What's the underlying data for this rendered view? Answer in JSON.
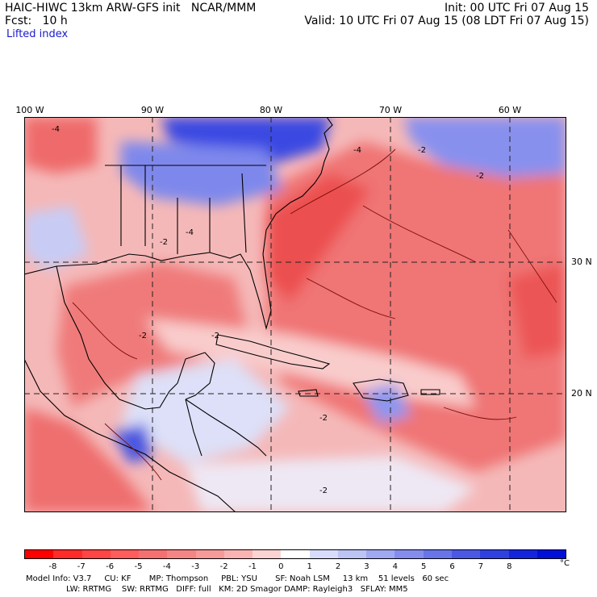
{
  "header": {
    "model": "HAIC-HIWC 13km ARW-GFS init   NCAR/MMM",
    "fcst": "Fcst:   10 h",
    "field": "Lifted index",
    "init": "Init: 00 UTC Fri 07 Aug 15",
    "valid": "Valid: 10 UTC Fri 07 Aug 15 (08 LDT Fri 07 Aug 15)"
  },
  "map": {
    "lon_labels": [
      "100 W",
      "90 W",
      "80 W",
      "70 W",
      "60 W"
    ],
    "lat_labels": [
      "30 N",
      "20 N"
    ],
    "contour_label": "-2",
    "contour_label_neg4": "-4",
    "colors": {
      "strong_neg": "#e83030",
      "mid_neg": "#f06565",
      "weak_neg": "#f7a7a7",
      "near_zero": "#ffe9e9",
      "weak_pos": "#c8cdf5",
      "mid_pos": "#8088e8",
      "strong_pos": "#2535e0"
    }
  },
  "colorbar": {
    "ticks": [
      "-8",
      "-7",
      "-6",
      "-5",
      "-4",
      "-3",
      "-2",
      "-1",
      "0",
      "1",
      "2",
      "3",
      "4",
      "5",
      "6",
      "7",
      "8"
    ],
    "unit": "°C",
    "colors": [
      "#ff0000",
      "#ff2b2b",
      "#ff4545",
      "#ff5d5d",
      "#f57070",
      "#f58585",
      "#f79a9a",
      "#f9b3b3",
      "#fcd3d3",
      "#ffffff",
      "#d8dcfa",
      "#bcc3f5",
      "#a0a8f2",
      "#848ded",
      "#6874e8",
      "#4c58e4",
      "#3040e0",
      "#1424dc",
      "#0010d8"
    ]
  },
  "footer": {
    "line1": "Model Info: V3.7     CU: KF       MP: Thompson     PBL: YSU       SF: Noah LSM     13 km    51 levels   60 sec",
    "line2": "LW: RRTMG    SW: RRTMG   DIFF: full   KM: 2D Smagor DAMP: Rayleigh3   SFLAY: MM5"
  }
}
